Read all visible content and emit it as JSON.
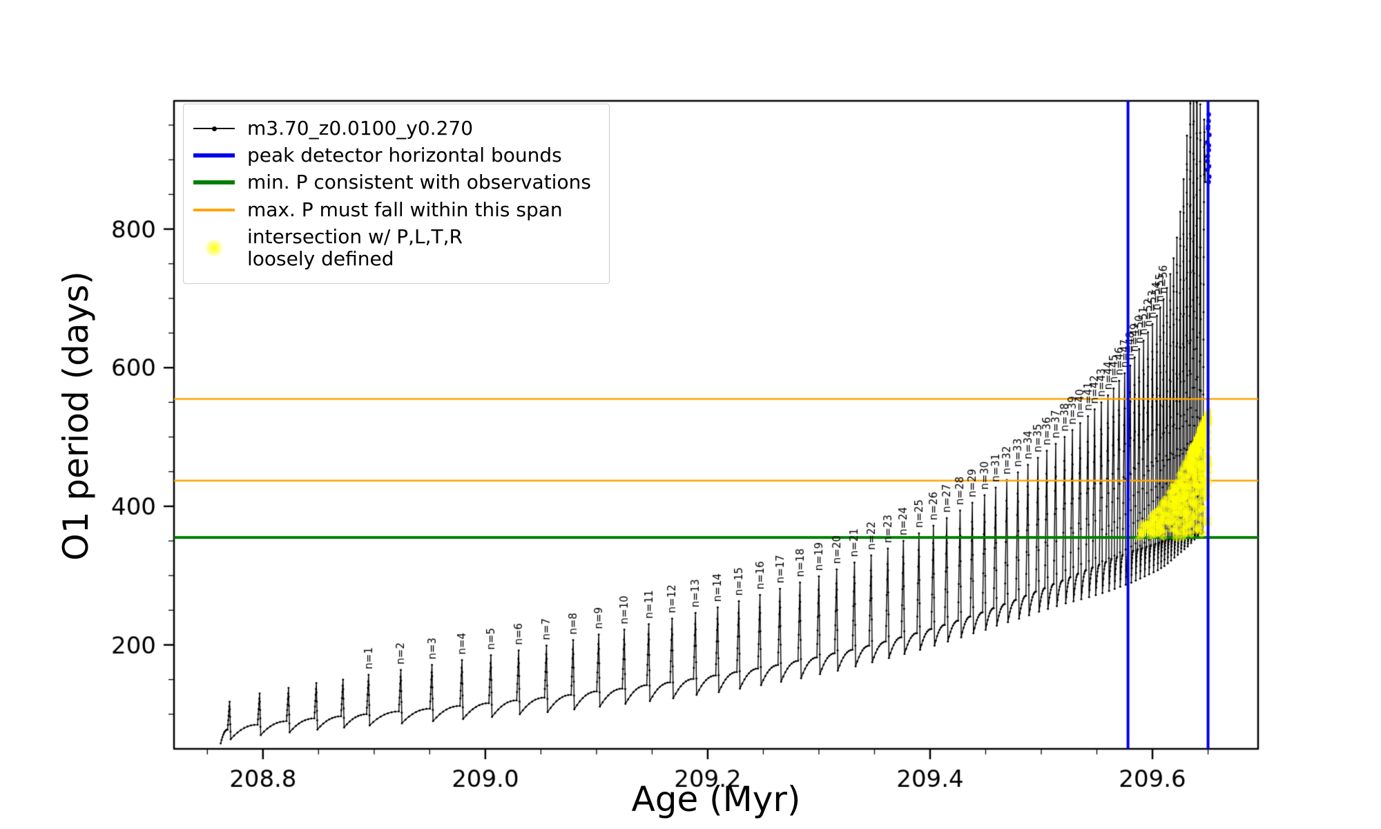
{
  "axes": {
    "xlabel": "Age (Myr)",
    "ylabel": "O1 period (days)",
    "xlim": [
      208.72,
      209.695
    ],
    "ylim": [
      50,
      985
    ],
    "x_major_ticks": [
      208.8,
      209.0,
      209.2,
      209.4,
      209.6
    ],
    "x_major_labels": [
      "208.8",
      "209.0",
      "209.2",
      "209.4",
      "209.6"
    ],
    "x_minor_step": 0.05,
    "y_major_ticks": [
      200,
      400,
      600,
      800
    ],
    "y_major_labels": [
      "200",
      "400",
      "600",
      "800"
    ],
    "y_minor_step": 50
  },
  "legend": {
    "entries": [
      {
        "label": "m3.70_z0.0100_y0.270",
        "type": "line-dot",
        "color": "#000000"
      },
      {
        "label": "peak detector horizontal bounds",
        "type": "line",
        "color": "#0000ee"
      },
      {
        "label": "min. P consistent with observations",
        "type": "line",
        "color": "#008000"
      },
      {
        "label": "max. P must fall within this span",
        "type": "line",
        "color": "#ffa500"
      },
      {
        "label_line1": "intersection w/ P,L,T,R",
        "label_line2": "loosely defined",
        "type": "blob",
        "color": "#ffff00"
      }
    ]
  },
  "chart_data": {
    "type": "line",
    "series_label": "m3.70_z0.0100_y0.270",
    "colors": {
      "series": "#000000",
      "peak_bounds": "#0000ee",
      "min_p": "#008000",
      "max_p": "#ffa500",
      "intersection": "#ffff00"
    },
    "guides": {
      "blue_vlines_x": [
        209.578,
        209.65
      ],
      "green_hline_y": 355,
      "orange_hlines_y": [
        437,
        555
      ]
    },
    "annotation_label_format": "n=",
    "start_point": {
      "x": 208.762,
      "y": 58
    },
    "pulse_format": [
      "n_label",
      "age_myr",
      "base_period_days",
      "peak_period_days",
      "dip_period_days"
    ],
    "pulses": [
      [
        null,
        208.77,
        78,
        118,
        64
      ],
      [
        null,
        208.797,
        85,
        130,
        70
      ],
      [
        null,
        208.823,
        90,
        138,
        74
      ],
      [
        null,
        208.848,
        94,
        145,
        78
      ],
      [
        null,
        208.872,
        97,
        150,
        81
      ],
      [
        1,
        208.895,
        100,
        157,
        84
      ],
      [
        2,
        208.924,
        104,
        164,
        87
      ],
      [
        3,
        208.952,
        108,
        171,
        90
      ],
      [
        4,
        208.979,
        112,
        178,
        93
      ],
      [
        5,
        209.005,
        116,
        185,
        96
      ],
      [
        6,
        209.03,
        120,
        192,
        100
      ],
      [
        7,
        209.055,
        124,
        199,
        103
      ],
      [
        8,
        209.079,
        128,
        207,
        107
      ],
      [
        9,
        209.102,
        133,
        215,
        111
      ],
      [
        10,
        209.125,
        137,
        222,
        115
      ],
      [
        11,
        209.147,
        142,
        230,
        119
      ],
      [
        12,
        209.168,
        146,
        238,
        123
      ],
      [
        13,
        209.189,
        151,
        246,
        128
      ],
      [
        14,
        209.209,
        156,
        254,
        132
      ],
      [
        15,
        209.228,
        161,
        263,
        137
      ],
      [
        16,
        209.247,
        166,
        272,
        142
      ],
      [
        17,
        209.265,
        171,
        281,
        147
      ],
      [
        18,
        209.283,
        177,
        290,
        152
      ],
      [
        19,
        209.3,
        182,
        299,
        158
      ],
      [
        20,
        209.316,
        188,
        309,
        163
      ],
      [
        21,
        209.332,
        193,
        319,
        169
      ],
      [
        22,
        209.347,
        199,
        329,
        175
      ],
      [
        23,
        209.362,
        205,
        339,
        181
      ],
      [
        24,
        209.376,
        211,
        350,
        187
      ],
      [
        25,
        209.39,
        217,
        361,
        193
      ],
      [
        26,
        209.403,
        223,
        372,
        199
      ],
      [
        27,
        209.415,
        229,
        383,
        205
      ],
      [
        28,
        209.427,
        235,
        394,
        211
      ],
      [
        29,
        209.438,
        241,
        405,
        217
      ],
      [
        30,
        209.449,
        247,
        416,
        222
      ],
      [
        31,
        209.459,
        253,
        427,
        228
      ],
      [
        32,
        209.469,
        259,
        438,
        233
      ],
      [
        33,
        209.479,
        265,
        449,
        238
      ],
      [
        34,
        209.488,
        271,
        460,
        243
      ],
      [
        35,
        209.497,
        277,
        470,
        248
      ],
      [
        36,
        209.505,
        282,
        480,
        252
      ],
      [
        37,
        209.513,
        288,
        490,
        256
      ],
      [
        38,
        209.521,
        293,
        500,
        260
      ],
      [
        39,
        209.528,
        298,
        510,
        263
      ],
      [
        40,
        209.535,
        303,
        520,
        266
      ],
      [
        41,
        209.542,
        308,
        530,
        269
      ],
      [
        42,
        209.548,
        312,
        540,
        272
      ],
      [
        43,
        209.554,
        316,
        550,
        275
      ],
      [
        44,
        209.56,
        320,
        560,
        278
      ],
      [
        45,
        209.565,
        324,
        570,
        281
      ],
      [
        46,
        209.57,
        327,
        581,
        284
      ],
      [
        47,
        209.575,
        330,
        592,
        287
      ],
      [
        48,
        209.58,
        333,
        603,
        290
      ],
      [
        49,
        209.584,
        336,
        615,
        293
      ],
      [
        50,
        209.588,
        338,
        627,
        296
      ],
      [
        51,
        209.592,
        340,
        639,
        299
      ],
      [
        52,
        209.596,
        342,
        651,
        302
      ],
      [
        53,
        209.6,
        344,
        663,
        305
      ],
      [
        54,
        209.604,
        346,
        675,
        308
      ],
      [
        55,
        209.607,
        348,
        687,
        311
      ],
      [
        56,
        209.61,
        350,
        699,
        314
      ],
      [
        null,
        209.613,
        352,
        715,
        318
      ],
      [
        null,
        209.616,
        353,
        735,
        322
      ],
      [
        null,
        209.619,
        354,
        758,
        326
      ],
      [
        null,
        209.622,
        355,
        788,
        330
      ],
      [
        null,
        209.625,
        356,
        825,
        334
      ],
      [
        null,
        209.628,
        357,
        872,
        338
      ],
      [
        null,
        209.631,
        358,
        935,
        342
      ],
      [
        null,
        209.634,
        359,
        1030,
        347
      ],
      [
        null,
        209.637,
        360,
        1120,
        352
      ],
      [
        null,
        209.64,
        361,
        1160,
        357
      ],
      [
        null,
        209.643,
        362,
        980,
        360
      ],
      [
        null,
        209.6465,
        363,
        958,
        868
      ]
    ],
    "yellow_cluster": {
      "x_min": 209.584,
      "x_max": 209.6515,
      "y_base": 352,
      "top_start": 372,
      "top_end": 548,
      "count": 800
    },
    "blue_points": {
      "x": 209.6502,
      "y_min": 868,
      "y_max": 965,
      "count": 14
    }
  }
}
